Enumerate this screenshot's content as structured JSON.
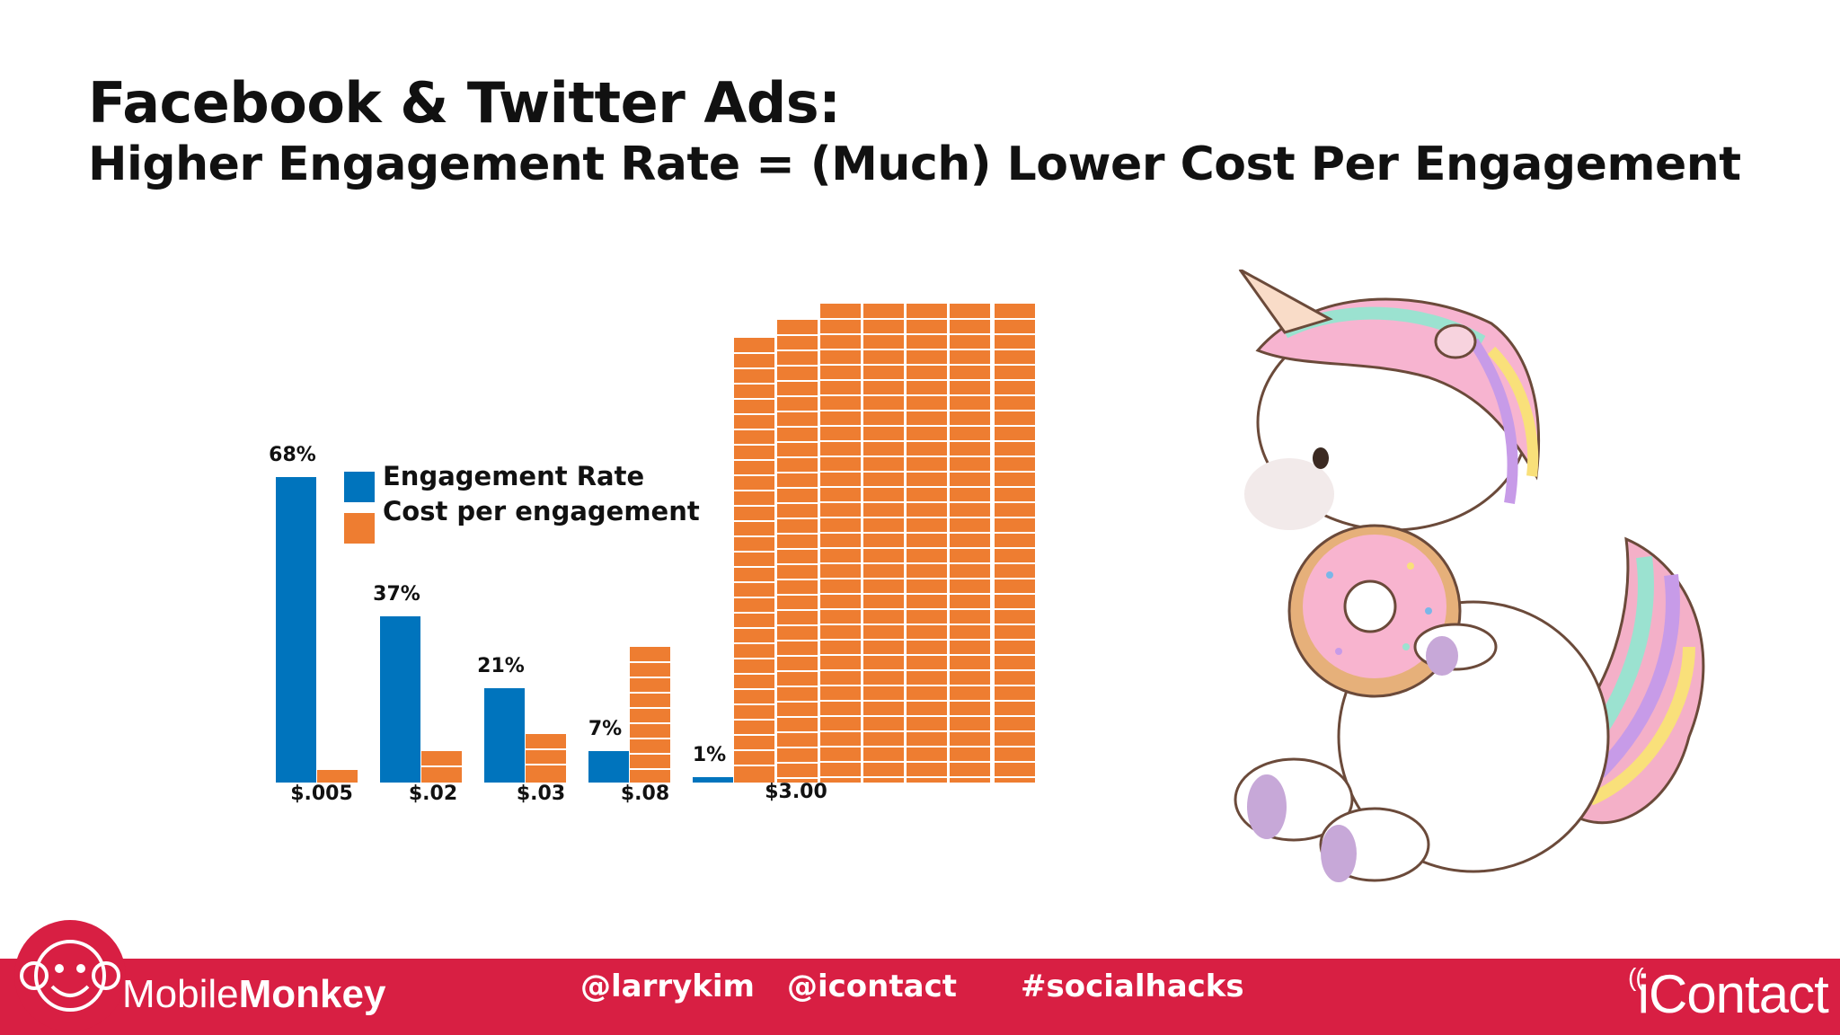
{
  "slide": {
    "title": "Facebook & Twitter Ads:",
    "subtitle": "Higher Engagement Rate = (Much) Lower Cost Per Engagement"
  },
  "chart_data": {
    "type": "bar",
    "categories": [
      "68%",
      "37%",
      "21%",
      "7%",
      "1%"
    ],
    "series": [
      {
        "name": "Engagement Rate",
        "color": "#0074bd",
        "values": [
          68,
          37,
          21,
          7,
          1
        ],
        "labels": [
          "68%",
          "37%",
          "21%",
          "7%",
          "1%"
        ]
      },
      {
        "name": "Cost per engagement",
        "color": "#ee7d31",
        "values": [
          0.005,
          0.02,
          0.03,
          0.08,
          3.0
        ],
        "labels": [
          "$.005",
          "$.02",
          "$.03",
          "$.08",
          "$3.00"
        ]
      }
    ],
    "legend": "top-center",
    "grid": false
  },
  "footer": {
    "brand_part1": "Mobile",
    "brand_part2": "Monkey",
    "handles": [
      "@larrykim",
      "@icontact",
      "#socialhacks"
    ],
    "partner_glyph": "((",
    "partner": "iContact",
    "bg_color": "#d81f43"
  },
  "icons": {
    "brand": "monkey-face-icon",
    "illustration": "unicorn-eating-donut"
  }
}
